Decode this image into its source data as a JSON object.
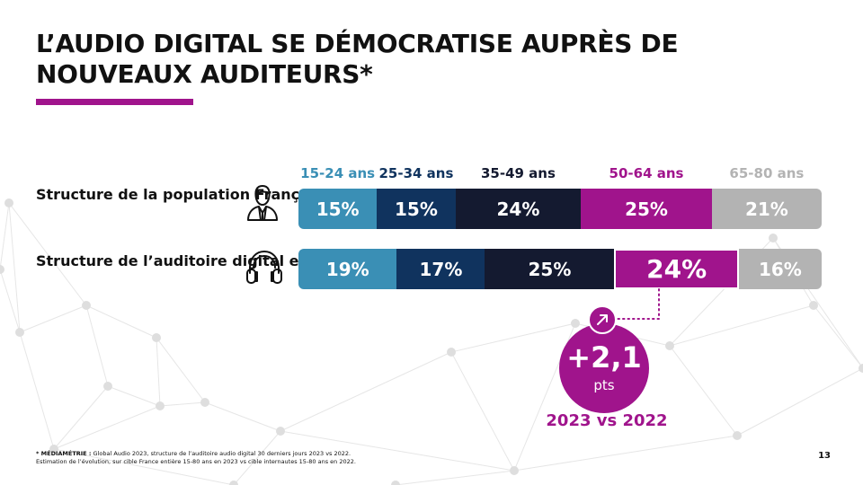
{
  "slide": {
    "title": "L’AUDIO DIGITAL SE DÉMOCRATISE AUPRÈS DE NOUVEAUX AUDITEURS*",
    "footnote_source_label": "* MÉDIAMÉTRIE :",
    "footnote_source_text": " Global Audio 2023, structure de l’auditoire audio digital 30 derniers jours 2023 vs 2022.",
    "footnote_method": "Estimation de l’évolution, sur cible France entière 15-80 ans en 2023 vs cible internautes 15-80 ans en 2022.",
    "page_number": "13",
    "accent_color": "#a0148c"
  },
  "chart_data": {
    "type": "bar",
    "orientation": "horizontal",
    "stacked": true,
    "normalized": true,
    "categories": [
      "Structure de la population Française",
      "Structure de l’auditoire digital en 2023"
    ],
    "category_icons": [
      "person-icon",
      "headphones-icon"
    ],
    "series": [
      {
        "name": "15-24 ans",
        "color": "#3a8fb5",
        "values": [
          15,
          19
        ],
        "labels": [
          "15%",
          "19%"
        ]
      },
      {
        "name": "25-34 ans",
        "color": "#10335e",
        "values": [
          15,
          17
        ],
        "labels": [
          "15%",
          "17%"
        ]
      },
      {
        "name": "35-49 ans",
        "color": "#141a30",
        "values": [
          24,
          25
        ],
        "labels": [
          "24%",
          "25%"
        ]
      },
      {
        "name": "50-64 ans",
        "color": "#a0148c",
        "values": [
          25,
          24
        ],
        "labels": [
          "25%",
          "24%"
        ]
      },
      {
        "name": "65-80 ans",
        "color": "#b3b3b3",
        "values": [
          21,
          16
        ],
        "labels": [
          "21%",
          "16%"
        ]
      }
    ],
    "legend_position": "top",
    "highlighted_segment": {
      "series": "50-64 ans",
      "category": "Structure de l’auditoire digital en 2023"
    },
    "annotation": {
      "icon": "trend-up-arrow-icon",
      "value": "+2,1",
      "unit": "pts",
      "comparison": "2023 vs 2022",
      "target_series": "50-64 ans"
    }
  }
}
